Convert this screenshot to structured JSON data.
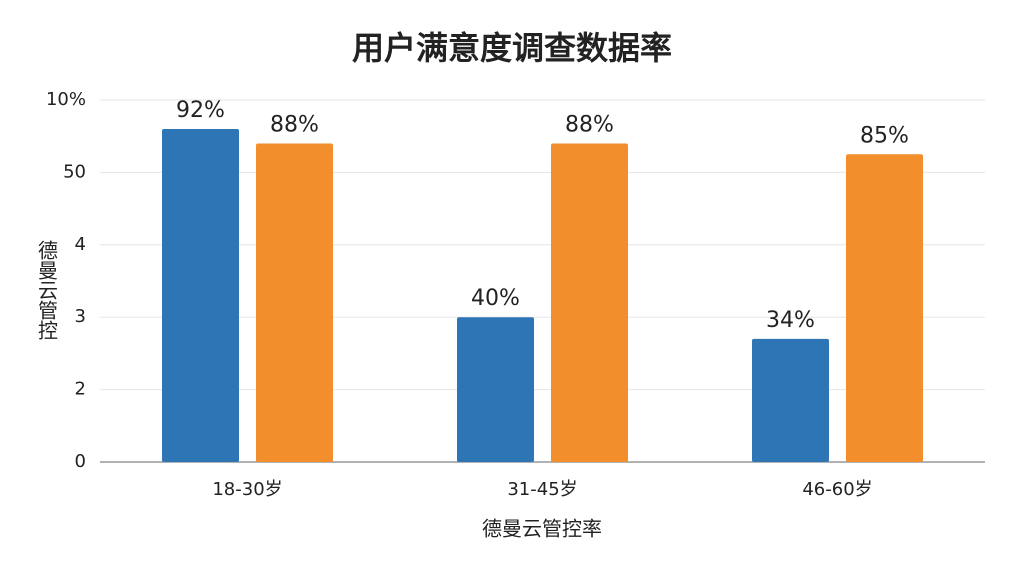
{
  "chart_data": {
    "type": "bar",
    "title": "用户满意度调查数据率",
    "x_label": "德曼云管控率",
    "y_label": "德曼云管控",
    "categories": [
      "18-30岁",
      "31-45岁",
      "46-60岁"
    ],
    "series": [
      {
        "color": "#2e75b6",
        "values": [
          92,
          40,
          34
        ],
        "value_labels": [
          "92%",
          "40%",
          "34%"
        ]
      },
      {
        "color": "#f28e2b",
        "values": [
          88,
          88,
          85
        ],
        "value_labels": [
          "88%",
          "88%",
          "85%"
        ]
      }
    ],
    "ylim": [
      0,
      100
    ],
    "yticks": [
      0,
      {
        "value": 20,
        "label": "2"
      },
      {
        "value": 40,
        "label": "3"
      },
      {
        "value": 60,
        "label": "4"
      },
      {
        "value": 80,
        "label": "50"
      },
      {
        "value": 100,
        "label": "10%"
      }
    ],
    "grid": true
  }
}
